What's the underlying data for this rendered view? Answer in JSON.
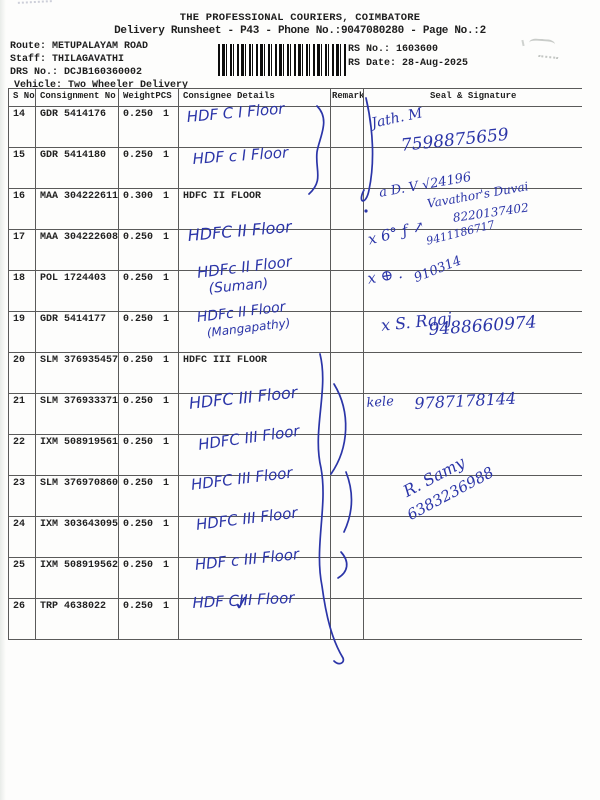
{
  "page": {
    "title": "THE PROFESSIONAL COURIERS, COIMBATORE",
    "subtitle": "Delivery Runsheet - P43 - Phone No.:9047080280 - Page No.:2",
    "route_label": "Route:",
    "route_value": "METUPALAYAM ROAD",
    "staff_label": "Staff:",
    "staff_value": "THILAGAVATHI",
    "drs_label": "DRS No.:",
    "drs_value": "DCJB160360002",
    "vehicle_label": "Vehicle:",
    "vehicle_value": "Two Wheeler Delivery",
    "rs_no_label": "RS No.:",
    "rs_no_value": "1603600",
    "rs_date_label": "RS Date:",
    "rs_date_value": "28-Aug-2025"
  },
  "table": {
    "headers": {
      "sno": "S No",
      "consignment": "Consignment No",
      "weight": "Weight",
      "pcs": "PCS",
      "consignee": "Consignee Details",
      "remarks": "Remarks",
      "seal": "Seal & Signature"
    },
    "rows": [
      {
        "sno": "14",
        "consignment": "GDR 5414176",
        "weight": "0.250",
        "pcs": "1",
        "consignee_printed": "",
        "remarks": ""
      },
      {
        "sno": "15",
        "consignment": "GDR 5414180",
        "weight": "0.250",
        "pcs": "1",
        "consignee_printed": "",
        "remarks": ""
      },
      {
        "sno": "16",
        "consignment": "MAA 304222611",
        "weight": "0.300",
        "pcs": "1",
        "consignee_printed": "HDFC II FLOOR",
        "remarks": ""
      },
      {
        "sno": "17",
        "consignment": "MAA 304222608",
        "weight": "0.250",
        "pcs": "1",
        "consignee_printed": "",
        "remarks": ""
      },
      {
        "sno": "18",
        "consignment": "POL 1724403",
        "weight": "0.250",
        "pcs": "1",
        "consignee_printed": "",
        "remarks": ""
      },
      {
        "sno": "19",
        "consignment": "GDR 5414177",
        "weight": "0.250",
        "pcs": "1",
        "consignee_printed": "",
        "remarks": ""
      },
      {
        "sno": "20",
        "consignment": "SLM 376935457",
        "weight": "0.250",
        "pcs": "1",
        "consignee_printed": "HDFC III FLOOR",
        "remarks": ""
      },
      {
        "sno": "21",
        "consignment": "SLM 376933371",
        "weight": "0.250",
        "pcs": "1",
        "consignee_printed": "",
        "remarks": ""
      },
      {
        "sno": "22",
        "consignment": "IXM 508919561",
        "weight": "0.250",
        "pcs": "1",
        "consignee_printed": "",
        "remarks": ""
      },
      {
        "sno": "23",
        "consignment": "SLM 376970860",
        "weight": "0.250",
        "pcs": "1",
        "consignee_printed": "",
        "remarks": ""
      },
      {
        "sno": "24",
        "consignment": "IXM 303643095",
        "weight": "0.250",
        "pcs": "1",
        "consignee_printed": "",
        "remarks": ""
      },
      {
        "sno": "25",
        "consignment": "IXM 508919562",
        "weight": "0.250",
        "pcs": "1",
        "consignee_printed": "",
        "remarks": ""
      },
      {
        "sno": "26",
        "consignment": "TRP 4638022",
        "weight": "0.250",
        "pcs": "1",
        "consignee_printed": "",
        "remarks": ""
      }
    ]
  },
  "handwriting": {
    "ink_color": "#2b35a8",
    "items": [
      {
        "id": "n14",
        "kind": "note",
        "text": "HDF C I Floor"
      },
      {
        "id": "n15",
        "kind": "note",
        "text": "HDF c I Floor"
      },
      {
        "id": "n17",
        "kind": "note",
        "text": "HDFC II Floor"
      },
      {
        "id": "n18a",
        "kind": "note",
        "text": "HDFc II Floor"
      },
      {
        "id": "n18b",
        "kind": "note",
        "text": "(Suman)"
      },
      {
        "id": "n19a",
        "kind": "note",
        "text": "HDFc II Floor"
      },
      {
        "id": "n19b",
        "kind": "note",
        "text": "(Mangapathy)"
      },
      {
        "id": "n21",
        "kind": "note",
        "text": "HDFC III Floor"
      },
      {
        "id": "n22",
        "kind": "note",
        "text": "HDFC III Floor"
      },
      {
        "id": "n23",
        "kind": "note",
        "text": "HDFC III Floor"
      },
      {
        "id": "n24",
        "kind": "note",
        "text": "HDFC III Floor"
      },
      {
        "id": "n25",
        "kind": "note",
        "text": "HDF c III Floor"
      },
      {
        "id": "n26",
        "kind": "note",
        "text": "HDF CIII Floor"
      },
      {
        "id": "mark26",
        "kind": "mark",
        "text": "✓"
      },
      {
        "id": "s14",
        "kind": "sig",
        "text": "Jath. M"
      },
      {
        "id": "s14p",
        "kind": "sig",
        "text": "7598875659"
      },
      {
        "id": "s16a",
        "kind": "sig",
        "text": "a D. V √24196"
      },
      {
        "id": "s16b",
        "kind": "sig",
        "text": "Vavathor's Duvai"
      },
      {
        "id": "s16c",
        "kind": "sig",
        "text": "8220137402"
      },
      {
        "id": "s17",
        "kind": "sig",
        "text": "x 6° ƒ ↗"
      },
      {
        "id": "s17p",
        "kind": "sig",
        "text": "9411186717"
      },
      {
        "id": "s18",
        "kind": "sig",
        "text": "x ⊕ ."
      },
      {
        "id": "s18p",
        "kind": "sig",
        "text": "910314"
      },
      {
        "id": "s19",
        "kind": "sig",
        "text": "x S. Raaj"
      },
      {
        "id": "s19p",
        "kind": "sig",
        "text": "9488660974"
      },
      {
        "id": "s21",
        "kind": "sig",
        "text": "kele"
      },
      {
        "id": "s21p",
        "kind": "sig",
        "text": "9787178144"
      },
      {
        "id": "s23",
        "kind": "sig",
        "text": "R. Samy"
      },
      {
        "id": "s23p",
        "kind": "sig",
        "text": "6383236988"
      }
    ]
  }
}
